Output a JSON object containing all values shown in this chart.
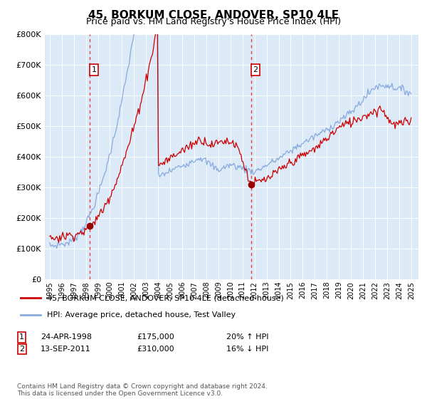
{
  "title": "45, BORKUM CLOSE, ANDOVER, SP10 4LE",
  "subtitle": "Price paid vs. HM Land Registry's House Price Index (HPI)",
  "title_fontsize": 11,
  "subtitle_fontsize": 9,
  "bg_color": "#dce9f7",
  "grid_color": "#ffffff",
  "red_line_color": "#cc0000",
  "blue_line_color": "#88aadd",
  "marker_color": "#990000",
  "vline1_color": "#cc0000",
  "vline2_color": "#cc0000",
  "x_start_year": 1995,
  "x_end_year": 2025,
  "ylim_min": 0,
  "ylim_max": 800000,
  "ytick_step": 100000,
  "legend_labels": [
    "45, BORKUM CLOSE, ANDOVER, SP10 4LE (detached house)",
    "HPI: Average price, detached house, Test Valley"
  ],
  "sale1_date_decimal": 1998.31,
  "sale1_price": 175000,
  "sale1_label": "24-APR-1998",
  "sale1_pct": "20% ↑ HPI",
  "sale2_date_decimal": 2011.71,
  "sale2_price": 310000,
  "sale2_label": "13-SEP-2011",
  "sale2_pct": "16% ↓ HPI",
  "footer": "Contains HM Land Registry data © Crown copyright and database right 2024.\nThis data is licensed under the Open Government Licence v3.0."
}
